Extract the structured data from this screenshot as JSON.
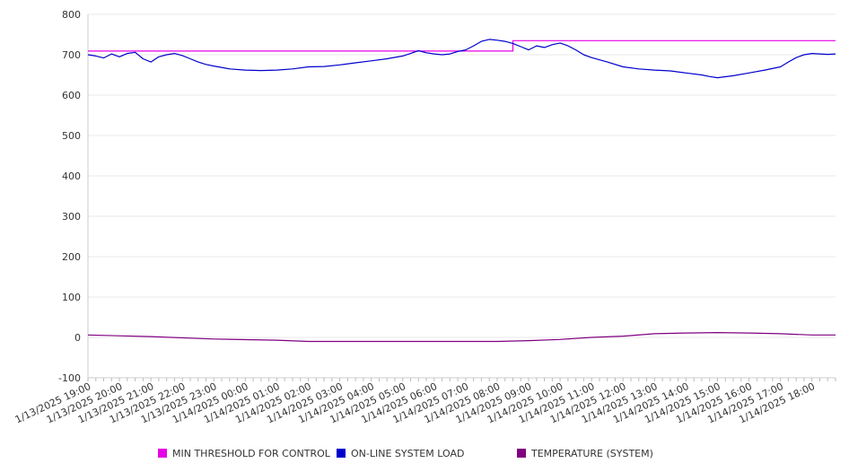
{
  "chart_data": {
    "type": "line",
    "title": "",
    "xlabel": "",
    "ylabel": "",
    "ylim": [
      -100,
      800
    ],
    "y_ticks": [
      -100,
      0,
      100,
      200,
      300,
      400,
      500,
      600,
      700,
      800
    ],
    "x_range": [
      "1/13/2025 19:00",
      "1/14/2025 18:45"
    ],
    "x_tick_labels": [
      "1/13/2025 19:00",
      "1/13/2025 20:00",
      "1/13/2025 21:00",
      "1/13/2025 22:00",
      "1/13/2025 23:00",
      "1/14/2025 00:00",
      "1/14/2025 01:00",
      "1/14/2025 02:00",
      "1/14/2025 03:00",
      "1/14/2025 04:00",
      "1/14/2025 05:00",
      "1/14/2025 06:00",
      "1/14/2025 07:00",
      "1/14/2025 08:00",
      "1/14/2025 09:00",
      "1/14/2025 10:00",
      "1/14/2025 11:00",
      "1/14/2025 12:00",
      "1/14/2025 13:00",
      "1/14/2025 14:00",
      "1/14/2025 15:00",
      "1/14/2025 16:00",
      "1/14/2025 17:00",
      "1/14/2025 18:00"
    ],
    "grid": true,
    "legend_position": "bottom",
    "series": [
      {
        "name": "MIN THRESHOLD FOR CONTROL",
        "color": "#e600e6",
        "x": [
          "1/13/2025 19:00",
          "1/14/2025 08:30",
          "1/14/2025 08:30",
          "1/14/2025 18:45"
        ],
        "values": [
          709,
          709,
          735,
          735
        ]
      },
      {
        "name": "ON-LINE SYSTEM LOAD",
        "color": "#0000cc",
        "x": [
          "1/13/2025 19:00",
          "1/13/2025 19:15",
          "1/13/2025 19:30",
          "1/13/2025 19:45",
          "1/13/2025 20:00",
          "1/13/2025 20:15",
          "1/13/2025 20:30",
          "1/13/2025 20:45",
          "1/13/2025 21:00",
          "1/13/2025 21:15",
          "1/13/2025 21:30",
          "1/13/2025 21:45",
          "1/13/2025 22:00",
          "1/13/2025 22:15",
          "1/13/2025 22:30",
          "1/13/2025 22:45",
          "1/13/2025 23:00",
          "1/13/2025 23:30",
          "1/14/2025 00:00",
          "1/14/2025 00:30",
          "1/14/2025 01:00",
          "1/14/2025 01:30",
          "1/14/2025 02:00",
          "1/14/2025 02:30",
          "1/14/2025 03:00",
          "1/14/2025 03:30",
          "1/14/2025 04:00",
          "1/14/2025 04:30",
          "1/14/2025 05:00",
          "1/14/2025 05:15",
          "1/14/2025 05:30",
          "1/14/2025 05:45",
          "1/14/2025 06:00",
          "1/14/2025 06:15",
          "1/14/2025 06:30",
          "1/14/2025 06:45",
          "1/14/2025 07:00",
          "1/14/2025 07:15",
          "1/14/2025 07:30",
          "1/14/2025 07:45",
          "1/14/2025 08:00",
          "1/14/2025 08:15",
          "1/14/2025 08:30",
          "1/14/2025 08:45",
          "1/14/2025 09:00",
          "1/14/2025 09:15",
          "1/14/2025 09:30",
          "1/14/2025 09:45",
          "1/14/2025 10:00",
          "1/14/2025 10:15",
          "1/14/2025 10:30",
          "1/14/2025 10:45",
          "1/14/2025 11:00",
          "1/14/2025 11:30",
          "1/14/2025 12:00",
          "1/14/2025 12:30",
          "1/14/2025 13:00",
          "1/14/2025 13:30",
          "1/14/2025 14:00",
          "1/14/2025 14:30",
          "1/14/2025 14:45",
          "1/14/2025 15:00",
          "1/14/2025 15:30",
          "1/14/2025 16:00",
          "1/14/2025 16:30",
          "1/14/2025 17:00",
          "1/14/2025 17:15",
          "1/14/2025 17:30",
          "1/14/2025 17:45",
          "1/14/2025 18:00",
          "1/14/2025 18:15",
          "1/14/2025 18:30",
          "1/14/2025 18:45"
        ],
        "values": [
          700,
          697,
          692,
          702,
          695,
          703,
          706,
          690,
          682,
          695,
          700,
          703,
          698,
          690,
          682,
          676,
          672,
          665,
          662,
          661,
          662,
          665,
          670,
          671,
          675,
          680,
          685,
          690,
          697,
          703,
          710,
          705,
          702,
          700,
          702,
          708,
          712,
          722,
          733,
          738,
          736,
          733,
          728,
          720,
          712,
          722,
          718,
          725,
          729,
          722,
          712,
          700,
          693,
          682,
          670,
          665,
          662,
          660,
          655,
          650,
          646,
          643,
          648,
          655,
          662,
          670,
          682,
          693,
          700,
          703,
          702,
          701,
          702
        ]
      },
      {
        "name": "TEMPERATURE (SYSTEM)",
        "color": "#800080",
        "x": [
          "1/13/2025 19:00",
          "1/13/2025 21:00",
          "1/13/2025 23:00",
          "1/14/2025 01:00",
          "1/14/2025 02:00",
          "1/14/2025 04:00",
          "1/14/2025 06:00",
          "1/14/2025 08:00",
          "1/14/2025 09:00",
          "1/14/2025 10:00",
          "1/14/2025 11:00",
          "1/14/2025 12:00",
          "1/14/2025 13:00",
          "1/14/2025 14:00",
          "1/14/2025 15:00",
          "1/14/2025 16:00",
          "1/14/2025 17:00",
          "1/14/2025 18:00",
          "1/14/2025 18:45"
        ],
        "values": [
          6,
          2,
          -4,
          -7,
          -10,
          -10,
          -10,
          -10,
          -8,
          -5,
          0,
          3,
          9,
          11,
          12,
          11,
          9,
          6,
          6
        ]
      }
    ]
  }
}
